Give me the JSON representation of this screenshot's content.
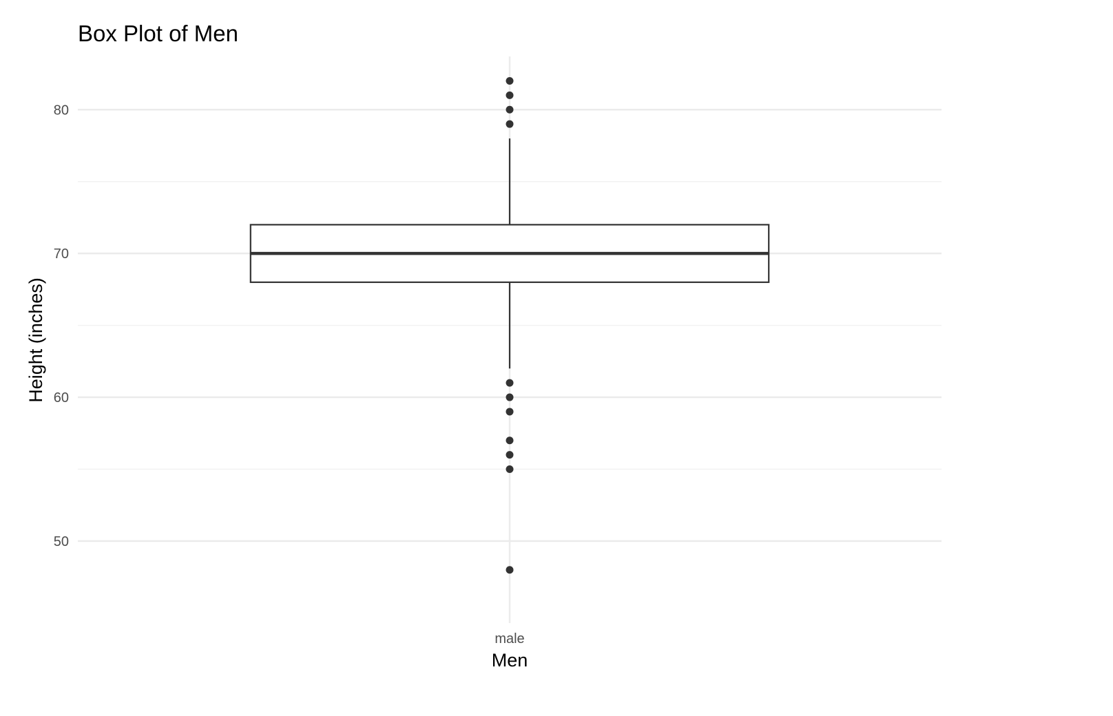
{
  "chart_data": {
    "type": "box",
    "title": "Box Plot of Men",
    "xlabel": "Men",
    "ylabel": "Height (inches)",
    "categories": [
      "male"
    ],
    "y_ticks": [
      50,
      60,
      70,
      80
    ],
    "ylim": [
      44.3,
      83.7
    ],
    "grid": true,
    "legend": "none",
    "boxes": [
      {
        "category": "male",
        "lower_whisker": 62,
        "q1": 68,
        "median": 70,
        "q3": 72,
        "upper_whisker": 78,
        "outliers": [
          82,
          81,
          80,
          79,
          61,
          60,
          59,
          57,
          56,
          55,
          48
        ]
      }
    ],
    "colors": {
      "box_line": "#333333",
      "box_fill": "#ffffff",
      "grid_major": "#ebebeb",
      "grid_minor": "#f2f2f2",
      "tick_text": "#4d4d4d"
    }
  }
}
